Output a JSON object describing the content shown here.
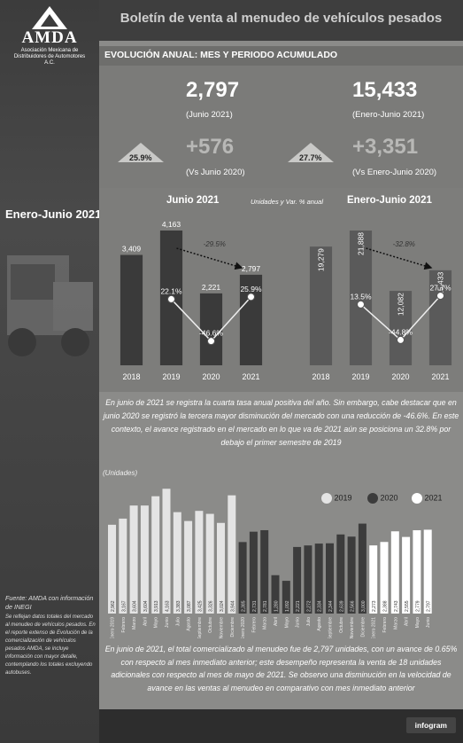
{
  "header": {
    "title": "Boletín de venta al menudeo de vehículos pesados"
  },
  "logo": {
    "name": "AMDA",
    "subtitle_1": "Asociación Mexicana de",
    "subtitle_2": "Distribuidores de Automotores A.C."
  },
  "left": {
    "period": "Enero-Junio 2021",
    "source_title": "Fuente: AMDA con información de INEGI",
    "source_note": "Se reflejan datos totales del mercado al menudeo de vehículos pesados. En el reporte extenso de Evolución de la comercialización de vehículos pesados AMDA, se incluye información con mayor detalle, contemplando los totales excluyendo autobuses."
  },
  "kpis": {
    "section_title": "EVOLUCIÓN ANUAL: MES Y PERIODO ACUMULADO",
    "month_value": "2,797",
    "month_label": "(Junio 2021)",
    "month_change": "+576",
    "month_change_label": "(Vs Junio 2020)",
    "month_pct": "25.9%",
    "period_value": "15,433",
    "period_label": "(Enero-Junio 2021)",
    "period_change": "+3,351",
    "period_change_label": "(Vs Enero-Junio 2020)",
    "period_pct": "27.7%"
  },
  "annual_note": "Unidades y Var. % anual",
  "chart_data": [
    {
      "type": "bar",
      "title": "Junio 2021",
      "categories": [
        "2018",
        "2019",
        "2020",
        "2021"
      ],
      "values": [
        3409,
        4163,
        2221,
        2797
      ],
      "value_labels": [
        "3,409",
        "4,163",
        "2,221",
        "2,797"
      ],
      "pct_change": [
        null,
        22.1,
        -46.6,
        25.9
      ],
      "pct_labels": [
        "",
        "22.1%",
        "-46.6%",
        "25.9%"
      ],
      "annotation": "-29.5%",
      "colors": {
        "bars": "#3a3a3a"
      }
    },
    {
      "type": "bar",
      "title": "Enero-Junio 2021",
      "categories": [
        "2018",
        "2019",
        "2020",
        "2021"
      ],
      "values": [
        19279,
        21888,
        12082,
        15433
      ],
      "value_labels": [
        "19,279",
        "21,888",
        "12,082",
        "15,433"
      ],
      "pct_change": [
        null,
        13.5,
        -44.8,
        27.7
      ],
      "pct_labels": [
        "",
        "13.5%",
        "-44.8%",
        "27.7%"
      ],
      "annotation": "-32.8%",
      "colors": {
        "bars": "#5a5a5a"
      }
    },
    {
      "type": "bar",
      "ylabel": "(Unidades)",
      "series": [
        {
          "name": "2019",
          "color": "#e4e4e4",
          "categories": [
            "Enero 2019",
            "Febrero",
            "Marzo",
            "Abril",
            "Mayo",
            "Junio",
            "Julio",
            "Agosto",
            "Septiembre",
            "Octubre",
            "Noviembre",
            "Diciembre"
          ],
          "values": [
            2962,
            3167,
            3604,
            3604,
            3913,
            4163,
            3383,
            3087,
            3425,
            3326,
            3024,
            3944
          ],
          "labels": [
            "2,962",
            "3,167",
            "3,604",
            "3,604",
            "3,913",
            "4,163",
            "3,383",
            "3,087",
            "3,425",
            "3,326",
            "3,024",
            "3,944"
          ]
        },
        {
          "name": "2020",
          "color": "#3c3c3c",
          "categories": [
            "Enero 2020",
            "Febrero",
            "Marzo",
            "Abril",
            "Mayo",
            "Junio",
            "Julio",
            "Agosto",
            "Septiembre",
            "Octubre",
            "Noviembre",
            "Diciembre"
          ],
          "values": [
            2385,
            2731,
            2781,
            1280,
            1092,
            2221,
            2272,
            2334,
            2344,
            2639,
            2566,
            3000
          ],
          "labels": [
            "2,385",
            "2,731",
            "2,781",
            "1,280",
            "1,092",
            "2,221",
            "2,272",
            "2,334",
            "2,344",
            "2,639",
            "2,566",
            "3,000"
          ]
        },
        {
          "name": "2021",
          "color": "#ffffff",
          "categories": [
            "Enero 2021",
            "Febrero",
            "Marzo",
            "Abril",
            "Mayo",
            "Junio"
          ],
          "values": [
            2273,
            2388,
            2743,
            2555,
            2779,
            2797
          ],
          "labels": [
            "2,273",
            "2,388",
            "2,743",
            "2,555",
            "2,779",
            "2,797"
          ]
        }
      ]
    }
  ],
  "text_annual": "En junio de 2021 se registra la cuarta tasa anual positiva del año. Sin embargo, cabe destacar que en junio 2020 se registró la tercera mayor disminución del mercado con una reducción de -46.6%. En este contexto, el avance registrado en el mercado en lo que va de 2021 aún se posiciona un 32.8% por debajo el primer semestre de 2019",
  "text_monthly": "En junio de 2021, el total comercializado al menudeo fue de 2,797 unidades, con un avance de 0.65% con respecto al mes inmediato anterior; este desempeño representa la venta de 18 unidades adicionales con respecto al mes de mayo de 2021. Se observo una disminución en la velocidad de avance en las ventas al menudeo en comparativo con mes inmediato anterior",
  "footer": {
    "brand": "infogram"
  }
}
